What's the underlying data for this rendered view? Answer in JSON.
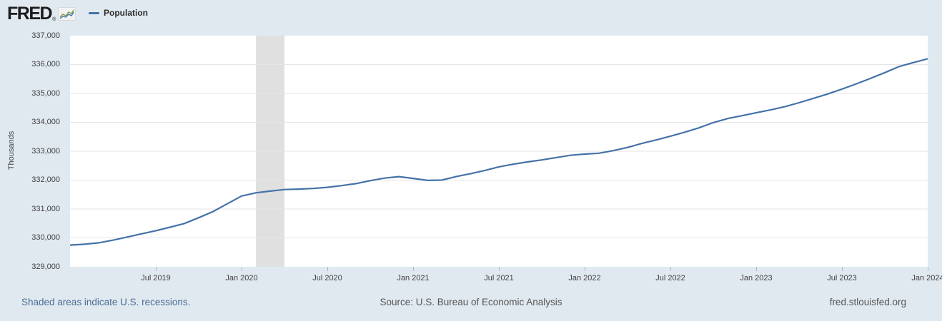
{
  "header": {
    "logo_text": "FRED",
    "legend": {
      "series_label": "Population"
    }
  },
  "colors": {
    "line": "#4572a7",
    "recession_band": "#e0e0e0",
    "gridline": "#e6e6e6",
    "page_background": "#e1e9f0"
  },
  "chart_data": {
    "type": "line",
    "title": "Population",
    "ylabel": "Thousands",
    "ylim": [
      329000,
      337000
    ],
    "grid": "horizontal",
    "legend_position": "top-left",
    "frequency": "monthly",
    "x_start": "2019-01",
    "x_end": "2024-01",
    "y_ticks": [
      {
        "label": "337,000",
        "value": 337000
      },
      {
        "label": "336,000",
        "value": 336000
      },
      {
        "label": "335,000",
        "value": 335000
      },
      {
        "label": "334,000",
        "value": 334000
      },
      {
        "label": "333,000",
        "value": 333000
      },
      {
        "label": "332,000",
        "value": 332000
      },
      {
        "label": "331,000",
        "value": 331000
      },
      {
        "label": "330,000",
        "value": 330000
      },
      {
        "label": "329,000",
        "value": 329000
      }
    ],
    "x_ticks": [
      {
        "label": "Jul 2019",
        "month_index": 6
      },
      {
        "label": "Jan 2020",
        "month_index": 12
      },
      {
        "label": "Jul 2020",
        "month_index": 18
      },
      {
        "label": "Jan 2021",
        "month_index": 24
      },
      {
        "label": "Jul 2021",
        "month_index": 30
      },
      {
        "label": "Jan 2022",
        "month_index": 36
      },
      {
        "label": "Jul 2022",
        "month_index": 42
      },
      {
        "label": "Jan 2023",
        "month_index": 48
      },
      {
        "label": "Jul 2023",
        "month_index": 54
      },
      {
        "label": "Jan 2024",
        "month_index": 60
      }
    ],
    "recession_bands": [
      {
        "start": "2020-02",
        "end": "2020-04",
        "start_index": 13,
        "end_index": 15
      }
    ],
    "series": [
      {
        "name": "Population",
        "color": "#4572a7",
        "values": [
          329750,
          329780,
          329830,
          329920,
          330030,
          330140,
          330250,
          330370,
          330500,
          330700,
          330910,
          331180,
          331450,
          331560,
          331620,
          331675,
          331690,
          331710,
          331750,
          331810,
          331880,
          331980,
          332070,
          332120,
          332060,
          331990,
          332000,
          332120,
          332220,
          332330,
          332460,
          332550,
          332630,
          332700,
          332780,
          332860,
          332900,
          332930,
          333020,
          333130,
          333270,
          333390,
          333520,
          333660,
          333810,
          333990,
          334130,
          334230,
          334330,
          334430,
          334540,
          334680,
          334830,
          334980,
          335150,
          335330,
          335520,
          335720,
          335930,
          336070,
          336200
        ]
      }
    ]
  },
  "footer": {
    "notes_link": "Shaded areas indicate U.S. recessions.",
    "source": "Source: U.S. Bureau of Economic Analysis",
    "site": "fred.stlouisfed.org"
  }
}
